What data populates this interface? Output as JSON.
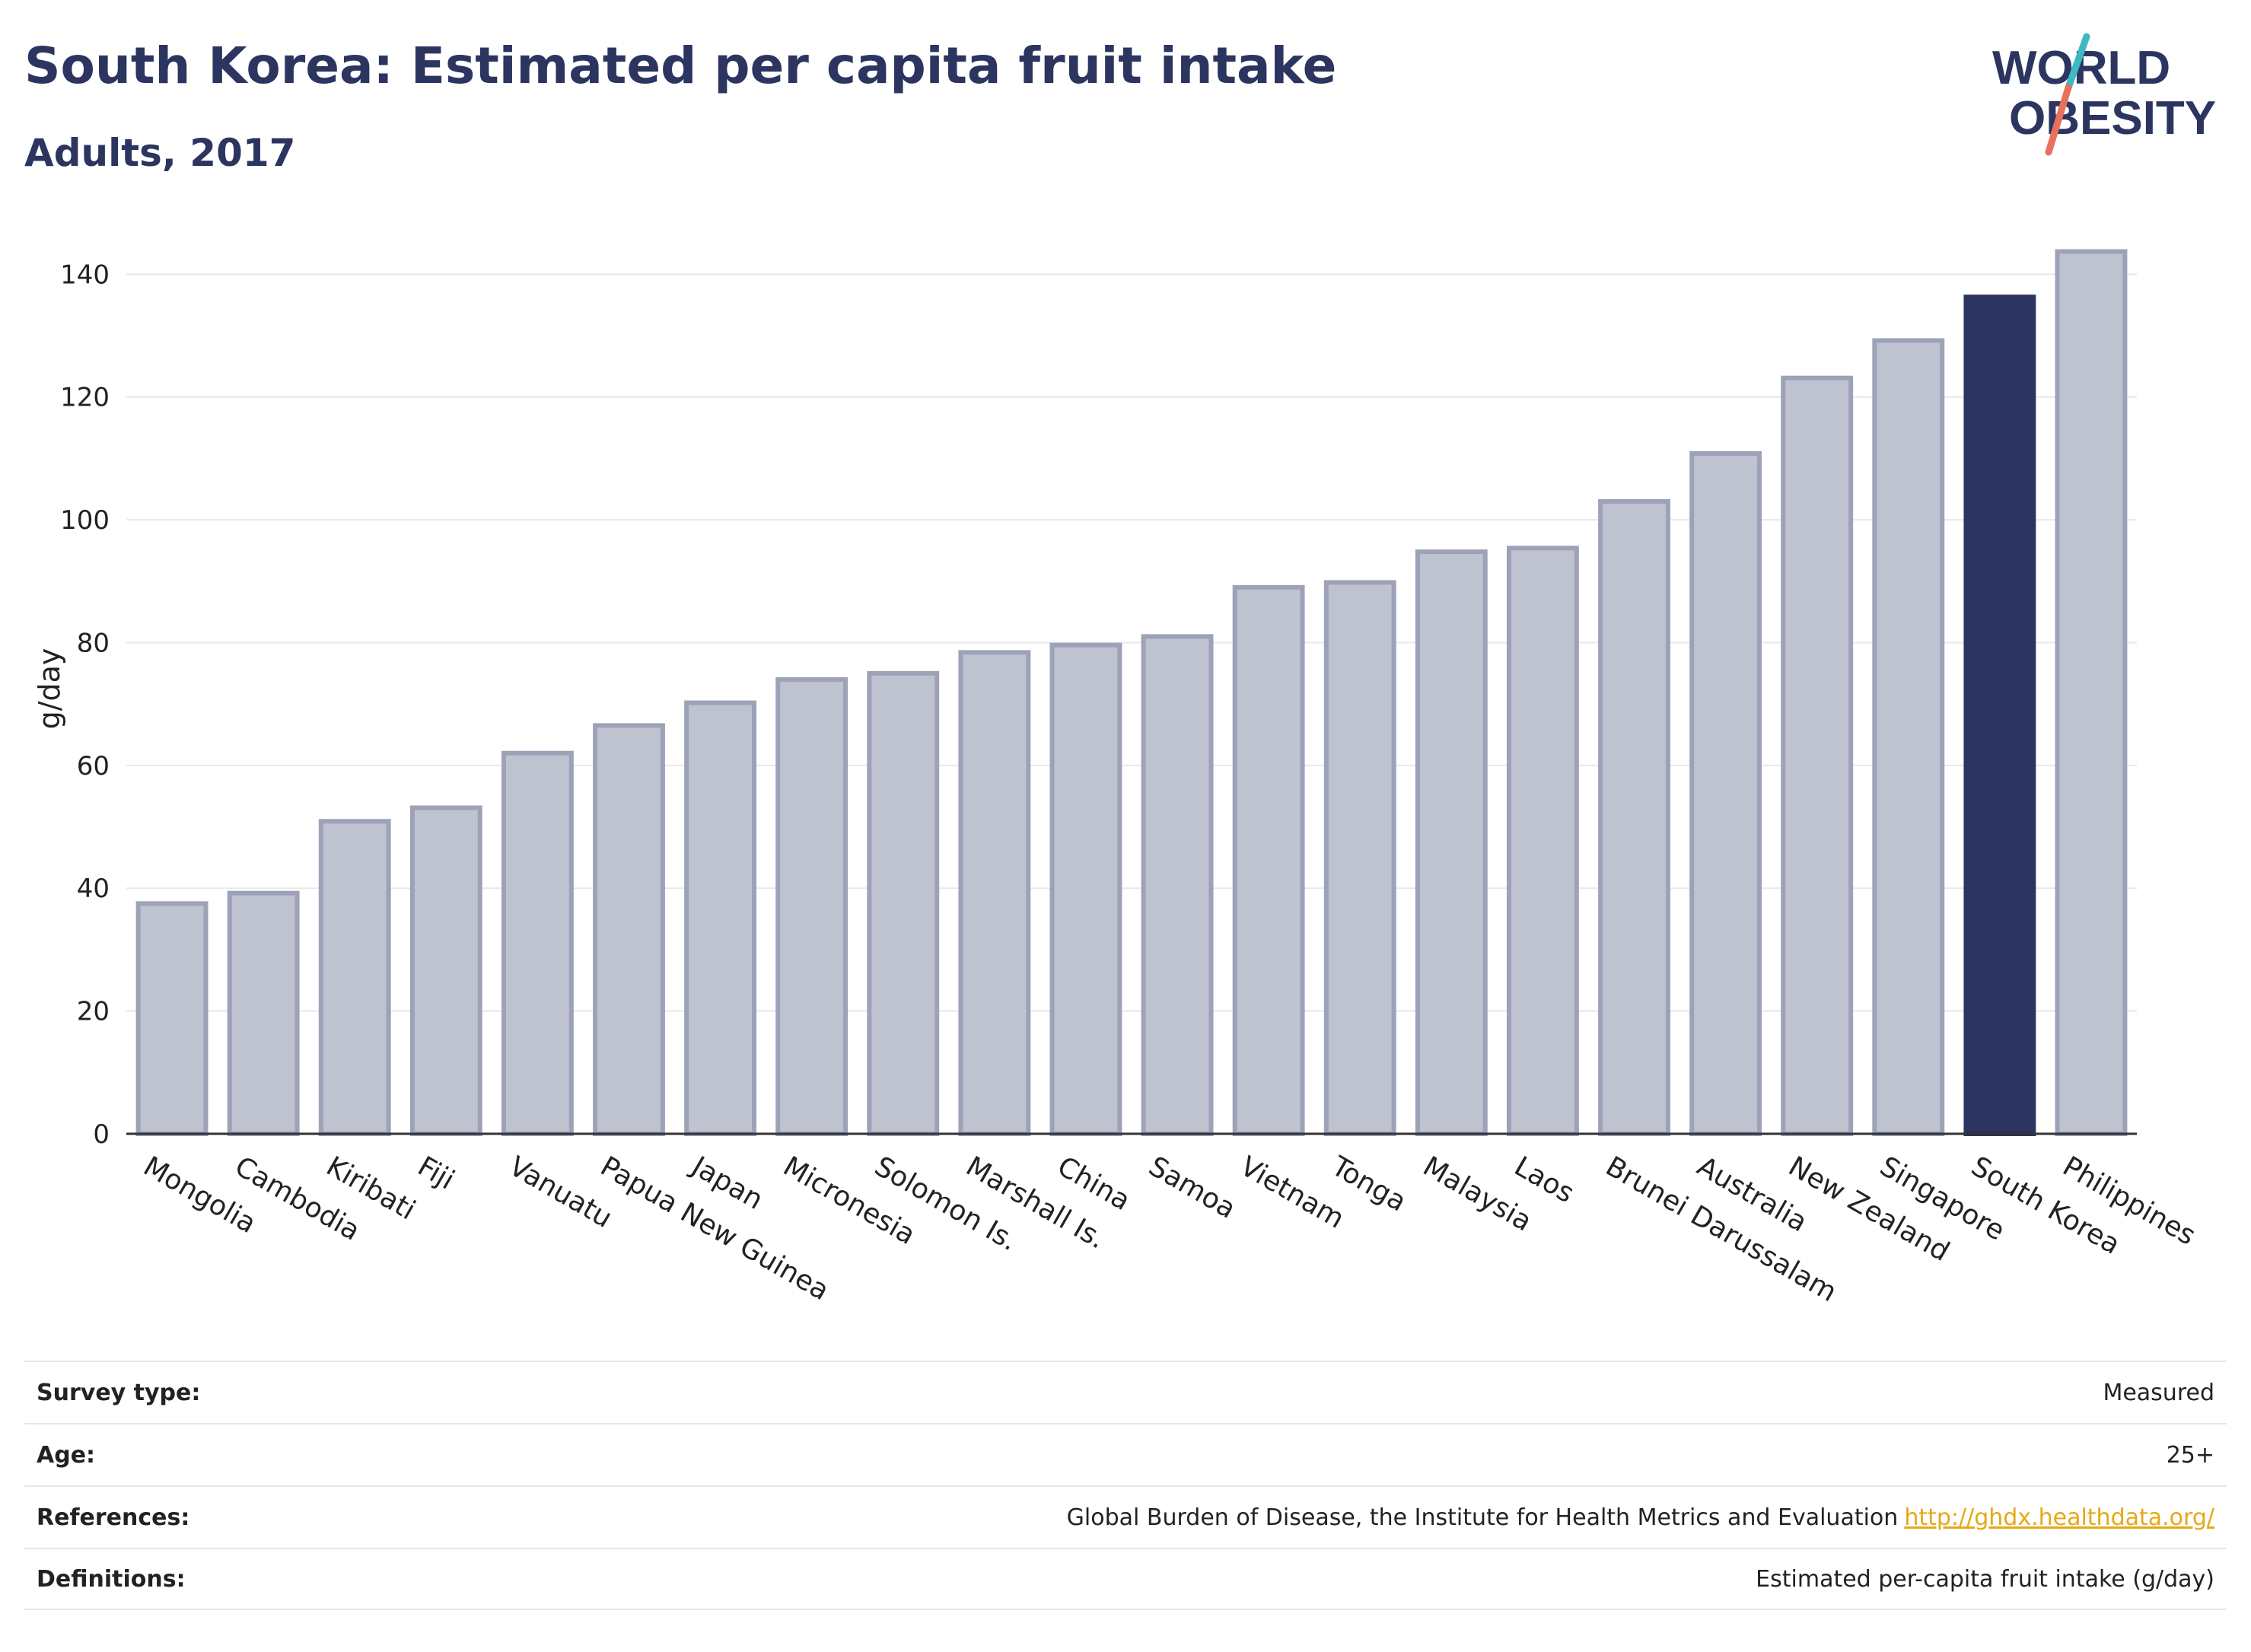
{
  "header": {
    "title": "South Korea: Estimated per capita fruit intake",
    "subtitle": "Adults, 2017"
  },
  "logo": {
    "line1": "WORLD",
    "line2": "OBESITY",
    "colors": {
      "text": "#2b3560",
      "slash_top": "#3fb8c4",
      "slash_bottom": "#e8705e"
    }
  },
  "chart_data": {
    "type": "bar",
    "title": "South Korea: Estimated per capita fruit intake",
    "subtitle": "Adults, 2017",
    "ylabel": "g/day",
    "xlabel": "",
    "ylim": [
      0,
      145
    ],
    "yticks": [
      0,
      20,
      40,
      60,
      80,
      100,
      120,
      140
    ],
    "grid": true,
    "categories": [
      "Mongolia",
      "Cambodia",
      "Kiribati",
      "Fiji",
      "Vanuatu",
      "Papua New Guinea",
      "Japan",
      "Micronesia",
      "Solomon Is.",
      "Marshall Is.",
      "China",
      "Samoa",
      "Vietnam",
      "Tonga",
      "Malaysia",
      "Laos",
      "Brunei Darussalam",
      "Australia",
      "New Zealand",
      "Singapore",
      "South Korea",
      "Philippines"
    ],
    "values": [
      37.5,
      39.2,
      50.9,
      53.1,
      62.0,
      66.5,
      70.2,
      74.0,
      75.0,
      78.4,
      79.6,
      81.0,
      89.0,
      89.8,
      94.8,
      95.4,
      103.0,
      110.8,
      123.1,
      129.2,
      136.3,
      143.7
    ],
    "highlight": "South Korea",
    "colors": {
      "bar": "#bfc2cf",
      "bar_edge": "#9da2b8",
      "highlight": "#2b3560",
      "grid": "#e8e8e8",
      "axis": "#333333"
    }
  },
  "meta": {
    "survey_type": {
      "label": "Survey type:",
      "value": "Measured"
    },
    "age": {
      "label": "Age:",
      "value": "25+"
    },
    "references": {
      "label": "References:",
      "value": "Global Burden of Disease, the Institute for Health Metrics and Evaluation",
      "link": "http://ghdx.healthdata.org/"
    },
    "definitions": {
      "label": "Definitions:",
      "value": "Estimated per-capita fruit intake (g/day)"
    }
  }
}
